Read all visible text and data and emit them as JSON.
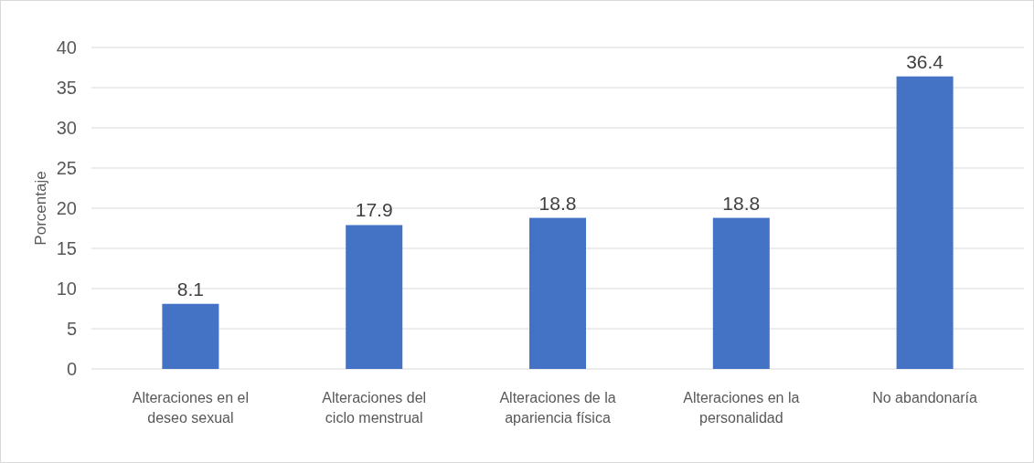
{
  "chart_data": {
    "type": "bar",
    "ylabel": "Porcentaje",
    "categories": [
      "Alteraciones en el deseo sexual",
      "Alteraciones del ciclo menstrual",
      "Alteraciones de la apariencia física",
      "Alteraciones en la personalidad",
      "No abandonaría"
    ],
    "values": [
      8.1,
      17.9,
      18.8,
      18.8,
      36.4
    ],
    "color": "#4472c4",
    "ylim": [
      0,
      40
    ],
    "yticks": [
      0,
      5,
      10,
      15,
      20,
      25,
      30,
      35,
      40
    ],
    "grid": "y",
    "data_labels": true
  }
}
